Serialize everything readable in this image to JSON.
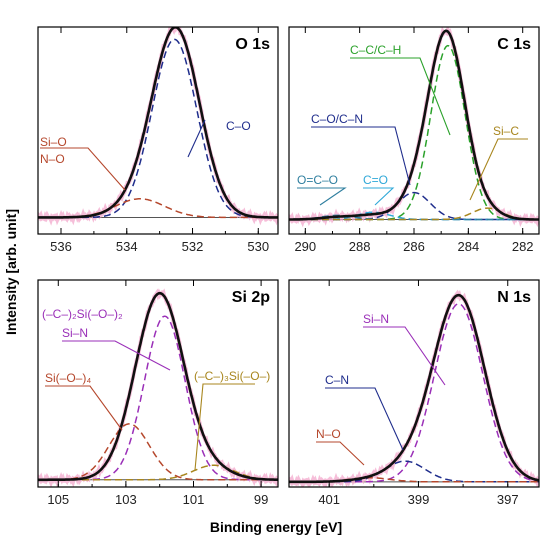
{
  "ylabel": "Intensity [arb. unit]",
  "xlabel": "Binding energy [eV]",
  "colors": {
    "total": "#111111",
    "navy": "#1f2d8c",
    "green": "#2aa12a",
    "purple": "#9a2fb8",
    "brown": "#b5472c",
    "gold": "#a8861e",
    "cyan": "#2fa8d8",
    "teal": "#2f7f9f",
    "pink": "#f3a8cc"
  },
  "chart_data": [
    {
      "type": "line",
      "title": "O 1s",
      "xlim": [
        536.7,
        529.4
      ],
      "xticks": [
        536,
        534,
        532,
        530
      ],
      "baseline": 0.08,
      "total": {
        "center": 532.5,
        "sigma": 0.72,
        "amp": 0.9
      },
      "series": [
        {
          "name": "C–O",
          "center": 532.55,
          "sigma": 0.68,
          "amp": 0.86,
          "color": "navy"
        },
        {
          "name": "Si–O / N–O",
          "center": 533.6,
          "sigma": 0.75,
          "amp": 0.09,
          "color": "brown"
        }
      ],
      "annotations": [
        {
          "text": "C–O",
          "color": "navy"
        },
        {
          "text": "Si–O",
          "color": "brown"
        },
        {
          "text": "N–O",
          "color": "brown"
        }
      ]
    },
    {
      "type": "line",
      "title": "C 1s",
      "xlim": [
        290.6,
        281.4
      ],
      "xticks": [
        290,
        288,
        286,
        284,
        282
      ],
      "baseline": 0.07,
      "total": {
        "center": 284.8,
        "sigma": 0.68,
        "amp": 0.9
      },
      "series": [
        {
          "name": "C–C/C–H",
          "center": 284.75,
          "sigma": 0.63,
          "amp": 0.84,
          "color": "green"
        },
        {
          "name": "C–O/C–N",
          "center": 286.0,
          "sigma": 0.6,
          "amp": 0.13,
          "color": "navy"
        },
        {
          "name": "C=O",
          "center": 287.5,
          "sigma": 0.6,
          "amp": 0.035,
          "color": "cyan"
        },
        {
          "name": "O=C–O",
          "center": 288.8,
          "sigma": 0.6,
          "amp": 0.02,
          "color": "teal"
        },
        {
          "name": "Si–C",
          "center": 283.3,
          "sigma": 0.55,
          "amp": 0.055,
          "color": "gold"
        }
      ],
      "annotations": [
        {
          "text": "C–C/C–H",
          "color": "green"
        },
        {
          "text": "C–O/C–N",
          "color": "navy"
        },
        {
          "text": "O=C–O",
          "color": "teal"
        },
        {
          "text": "C=O",
          "color": "cyan"
        },
        {
          "text": "Si–C",
          "color": "gold"
        }
      ]
    },
    {
      "type": "line",
      "title": "Si 2p",
      "xlim": [
        105.6,
        98.5
      ],
      "xticks": [
        105,
        103,
        101,
        99
      ],
      "baseline": 0.035,
      "total": {
        "center": 102.0,
        "sigma": 0.72,
        "amp": 0.9
      },
      "series": [
        {
          "name": "(–C–)2Si(–O–)2 / Si–N",
          "center": 101.85,
          "sigma": 0.6,
          "amp": 0.79,
          "color": "purple"
        },
        {
          "name": "Si(–O–)4",
          "center": 102.9,
          "sigma": 0.6,
          "amp": 0.27,
          "color": "brown"
        },
        {
          "name": "(–C–)3Si(–O–)",
          "center": 100.4,
          "sigma": 0.6,
          "amp": 0.07,
          "color": "gold"
        }
      ],
      "annotations": [
        {
          "text": "(–C–)₂Si(–O–)₂",
          "color": "purple"
        },
        {
          "text": "Si–N",
          "color": "purple"
        },
        {
          "text": "Si(–O–)₄",
          "color": "brown"
        },
        {
          "text": "(–C–)₃Si(–O–)",
          "color": "gold"
        }
      ]
    },
    {
      "type": "line",
      "title": "N 1s",
      "xlim": [
        401.9,
        396.3
      ],
      "xticks": [
        401,
        399,
        397
      ],
      "baseline": 0.025,
      "total": {
        "center": 398.1,
        "sigma": 0.58,
        "amp": 0.9
      },
      "series": [
        {
          "name": "Si–N",
          "center": 398.1,
          "sigma": 0.54,
          "amp": 0.86,
          "color": "purple"
        },
        {
          "name": "C–N",
          "center": 399.3,
          "sigma": 0.45,
          "amp": 0.1,
          "color": "navy"
        },
        {
          "name": "N–O",
          "center": 400.1,
          "sigma": 0.45,
          "amp": 0.02,
          "color": "brown"
        }
      ],
      "annotations": [
        {
          "text": "Si–N",
          "color": "purple"
        },
        {
          "text": "C–N",
          "color": "navy"
        },
        {
          "text": "N–O",
          "color": "brown"
        }
      ]
    }
  ]
}
